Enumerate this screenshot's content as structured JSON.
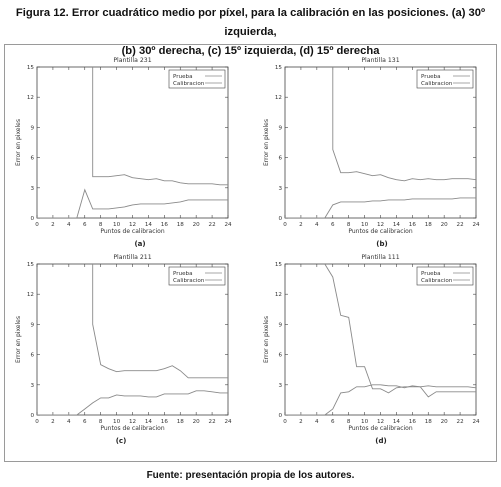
{
  "caption": {
    "line1": "Figura 12. Error cuadrático medio por píxel, para la calibración en las posiciones. (a) 30º izquierda,",
    "line2": "(b) 30º derecha, (c) 15º izquierda, (d) 15º derecha"
  },
  "source": "Fuente: presentación propia de los autores.",
  "colors": {
    "prueba": "#8a8a8a",
    "calibracion": "#8a8a8a",
    "axis": "#444444"
  },
  "chart_data": [
    {
      "type": "line",
      "panel_label": "(a)",
      "title": "Plantilla 231",
      "xlabel": "Puntos de calibracion",
      "ylabel": "Error en pixeles",
      "xlim": [
        0,
        24
      ],
      "ylim": [
        0,
        15
      ],
      "xticks": [
        0,
        2,
        4,
        6,
        8,
        10,
        12,
        14,
        16,
        18,
        20,
        22,
        24
      ],
      "yticks": [
        0,
        3,
        6,
        9,
        12,
        15
      ],
      "legend_position": "top-right",
      "series": [
        {
          "name": "Prueba",
          "x": [
            7,
            7,
            8,
            9,
            10,
            11,
            12,
            13,
            14,
            15,
            16,
            17,
            18,
            19,
            20,
            21,
            22,
            23,
            24
          ],
          "y": [
            15,
            4.1,
            4.1,
            4.1,
            4.2,
            4.3,
            4.0,
            3.9,
            3.8,
            3.9,
            3.7,
            3.7,
            3.5,
            3.4,
            3.4,
            3.4,
            3.4,
            3.3,
            3.3
          ]
        },
        {
          "name": "Calibracion",
          "x": [
            0,
            5,
            6,
            7,
            8,
            9,
            10,
            11,
            12,
            13,
            14,
            15,
            16,
            17,
            18,
            19,
            20,
            21,
            22,
            23,
            24
          ],
          "y": [
            0,
            0,
            2.8,
            0.9,
            0.9,
            0.9,
            1.0,
            1.1,
            1.3,
            1.4,
            1.4,
            1.4,
            1.4,
            1.5,
            1.6,
            1.8,
            1.8,
            1.8,
            1.8,
            1.8,
            1.8
          ]
        }
      ]
    },
    {
      "type": "line",
      "panel_label": "(b)",
      "title": "Plantilla 131",
      "xlabel": "Puntos de calibracion",
      "ylabel": "Error en pixeles",
      "xlim": [
        0,
        24
      ],
      "ylim": [
        0,
        15
      ],
      "xticks": [
        0,
        2,
        4,
        6,
        8,
        10,
        12,
        14,
        16,
        18,
        20,
        22,
        24
      ],
      "yticks": [
        0,
        3,
        6,
        9,
        12,
        15
      ],
      "legend_position": "top-right",
      "series": [
        {
          "name": "Prueba",
          "x": [
            6,
            6,
            7,
            8,
            9,
            10,
            11,
            12,
            13,
            14,
            15,
            16,
            17,
            18,
            19,
            20,
            21,
            22,
            23,
            24
          ],
          "y": [
            15,
            6.8,
            4.5,
            4.5,
            4.6,
            4.4,
            4.2,
            4.3,
            4.0,
            3.8,
            3.7,
            3.9,
            3.8,
            3.9,
            3.8,
            3.8,
            3.9,
            3.9,
            3.9,
            3.8
          ]
        },
        {
          "name": "Calibracion",
          "x": [
            0,
            5,
            6,
            7,
            8,
            9,
            10,
            11,
            12,
            13,
            14,
            15,
            16,
            17,
            18,
            19,
            20,
            21,
            22,
            23,
            24
          ],
          "y": [
            0,
            0,
            1.3,
            1.6,
            1.6,
            1.6,
            1.6,
            1.7,
            1.7,
            1.8,
            1.8,
            1.8,
            1.9,
            1.9,
            1.9,
            1.9,
            1.9,
            1.9,
            2.0,
            2.0,
            2.0
          ]
        }
      ]
    },
    {
      "type": "line",
      "panel_label": "(c)",
      "title": "Plantilla 211",
      "xlabel": "Puntos de calibracion",
      "ylabel": "Error en pixeles",
      "xlim": [
        0,
        24
      ],
      "ylim": [
        0,
        15
      ],
      "xticks": [
        0,
        2,
        4,
        6,
        8,
        10,
        12,
        14,
        16,
        18,
        20,
        22,
        24
      ],
      "yticks": [
        0,
        3,
        6,
        9,
        12,
        15
      ],
      "legend_position": "top-right",
      "series": [
        {
          "name": "Prueba",
          "x": [
            7,
            7,
            8,
            9,
            10,
            11,
            12,
            13,
            14,
            15,
            16,
            17,
            18,
            19,
            20,
            21,
            22,
            23,
            24
          ],
          "y": [
            15,
            9.0,
            5.0,
            4.6,
            4.3,
            4.4,
            4.4,
            4.4,
            4.4,
            4.4,
            4.6,
            4.9,
            4.4,
            3.7,
            3.7,
            3.7,
            3.7,
            3.7,
            3.7
          ]
        },
        {
          "name": "Calibracion",
          "x": [
            0,
            5,
            6,
            7,
            8,
            9,
            10,
            11,
            12,
            13,
            14,
            15,
            16,
            17,
            18,
            19,
            20,
            21,
            22,
            23,
            24
          ],
          "y": [
            0,
            0,
            0.6,
            1.2,
            1.7,
            1.7,
            2.0,
            1.9,
            1.9,
            1.9,
            1.8,
            1.8,
            2.1,
            2.1,
            2.1,
            2.1,
            2.4,
            2.4,
            2.3,
            2.2,
            2.2
          ]
        }
      ]
    },
    {
      "type": "line",
      "panel_label": "(d)",
      "title": "Plantilla 111",
      "xlabel": "Puntos de calibracion",
      "ylabel": "Error en pixeles",
      "xlim": [
        0,
        24
      ],
      "ylim": [
        0,
        15
      ],
      "xticks": [
        0,
        2,
        4,
        6,
        8,
        10,
        12,
        14,
        16,
        18,
        20,
        22,
        24
      ],
      "yticks": [
        0,
        3,
        6,
        9,
        12,
        15
      ],
      "legend_position": "top-right",
      "series": [
        {
          "name": "Prueba",
          "x": [
            5,
            6,
            7,
            8,
            9,
            10,
            11,
            12,
            13,
            14,
            15,
            16,
            17,
            18,
            19,
            20,
            21,
            22,
            23,
            24
          ],
          "y": [
            15,
            13.7,
            9.9,
            9.7,
            4.8,
            4.8,
            2.6,
            2.6,
            2.2,
            2.7,
            2.8,
            2.8,
            2.8,
            1.8,
            2.3,
            2.3,
            2.3,
            2.3,
            2.3,
            2.3
          ]
        },
        {
          "name": "Calibracion",
          "x": [
            0,
            5,
            6,
            7,
            8,
            9,
            10,
            11,
            12,
            13,
            14,
            15,
            16,
            17,
            18,
            19,
            20,
            21,
            22,
            23,
            24
          ],
          "y": [
            0,
            0,
            0.6,
            2.2,
            2.3,
            2.8,
            2.8,
            3.0,
            3.0,
            2.9,
            2.9,
            2.7,
            2.9,
            2.8,
            2.9,
            2.8,
            2.8,
            2.8,
            2.8,
            2.8,
            2.7
          ]
        }
      ]
    }
  ]
}
